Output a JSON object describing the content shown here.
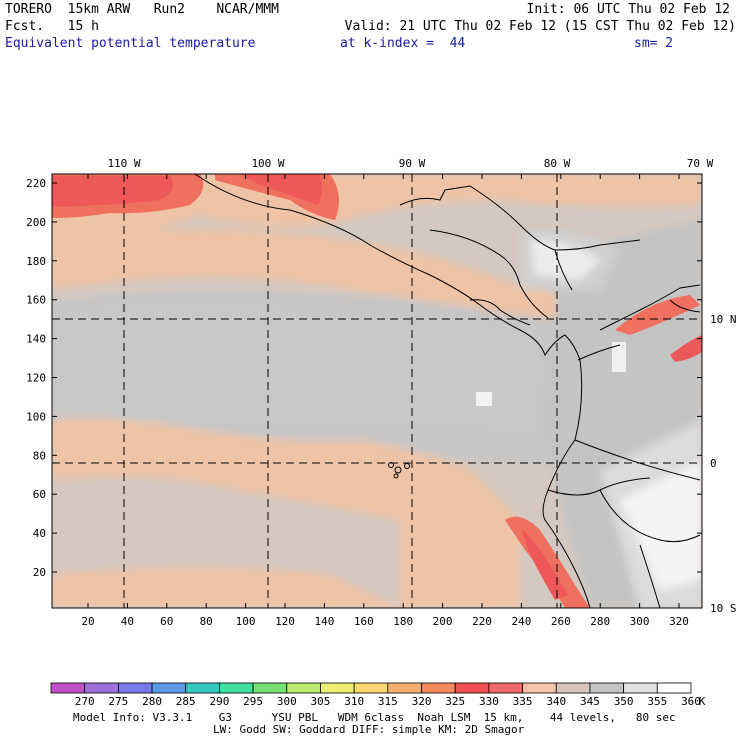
{
  "header": {
    "model": "TORERO  15km ARW   Run2    NCAR/MMM",
    "init": "Init: 06 UTC Thu 02 Feb 12",
    "fcst": "Fcst.   15 h",
    "valid": "Valid: 21 UTC Thu 02 Feb 12 (15 CST Thu 02 Feb 12)",
    "field": "Equivalent potential temperature",
    "level": "at k-index =  44",
    "smooth": "sm= 2"
  },
  "map": {
    "lon_labels": [
      "110 W",
      "100 W",
      "90 W",
      "80 W",
      "70 W"
    ],
    "lat_labels": [
      "10 N",
      "0",
      "10 S"
    ],
    "y_ticks": [
      "20",
      "40",
      "60",
      "80",
      "100",
      "120",
      "140",
      "160",
      "180",
      "200",
      "220"
    ],
    "x_ticks": [
      "20",
      "40",
      "60",
      "80",
      "100",
      "120",
      "140",
      "160",
      "180",
      "200",
      "220",
      "240",
      "260",
      "280",
      "300",
      "320"
    ]
  },
  "colorbar": {
    "values": [
      "270",
      "275",
      "280",
      "285",
      "290",
      "295",
      "300",
      "305",
      "310",
      "315",
      "320",
      "325",
      "330",
      "335",
      "340",
      "345",
      "350",
      "355",
      "360"
    ],
    "unit": "K",
    "colors": [
      "#c050c8",
      "#a070d8",
      "#7878ea",
      "#5a9ae6",
      "#30c8c0",
      "#40e0a0",
      "#78e070",
      "#b8ec70",
      "#f0f070",
      "#f8d870",
      "#f8b070",
      "#f88860",
      "#f05050",
      "#f06868",
      "#f4c4a8",
      "#d8c4bc",
      "#c4c4c4",
      "#e0e0e0",
      "#ffffff"
    ]
  },
  "footer": {
    "line1": "Model Info: V3.3.1    G3      YSU PBL   WDM 6class  Noah LSM  15 km,    44 levels,   80 sec",
    "line2": "LW: Godd SW: Goddard DIFF: simple KM: 2D Smagor"
  }
}
